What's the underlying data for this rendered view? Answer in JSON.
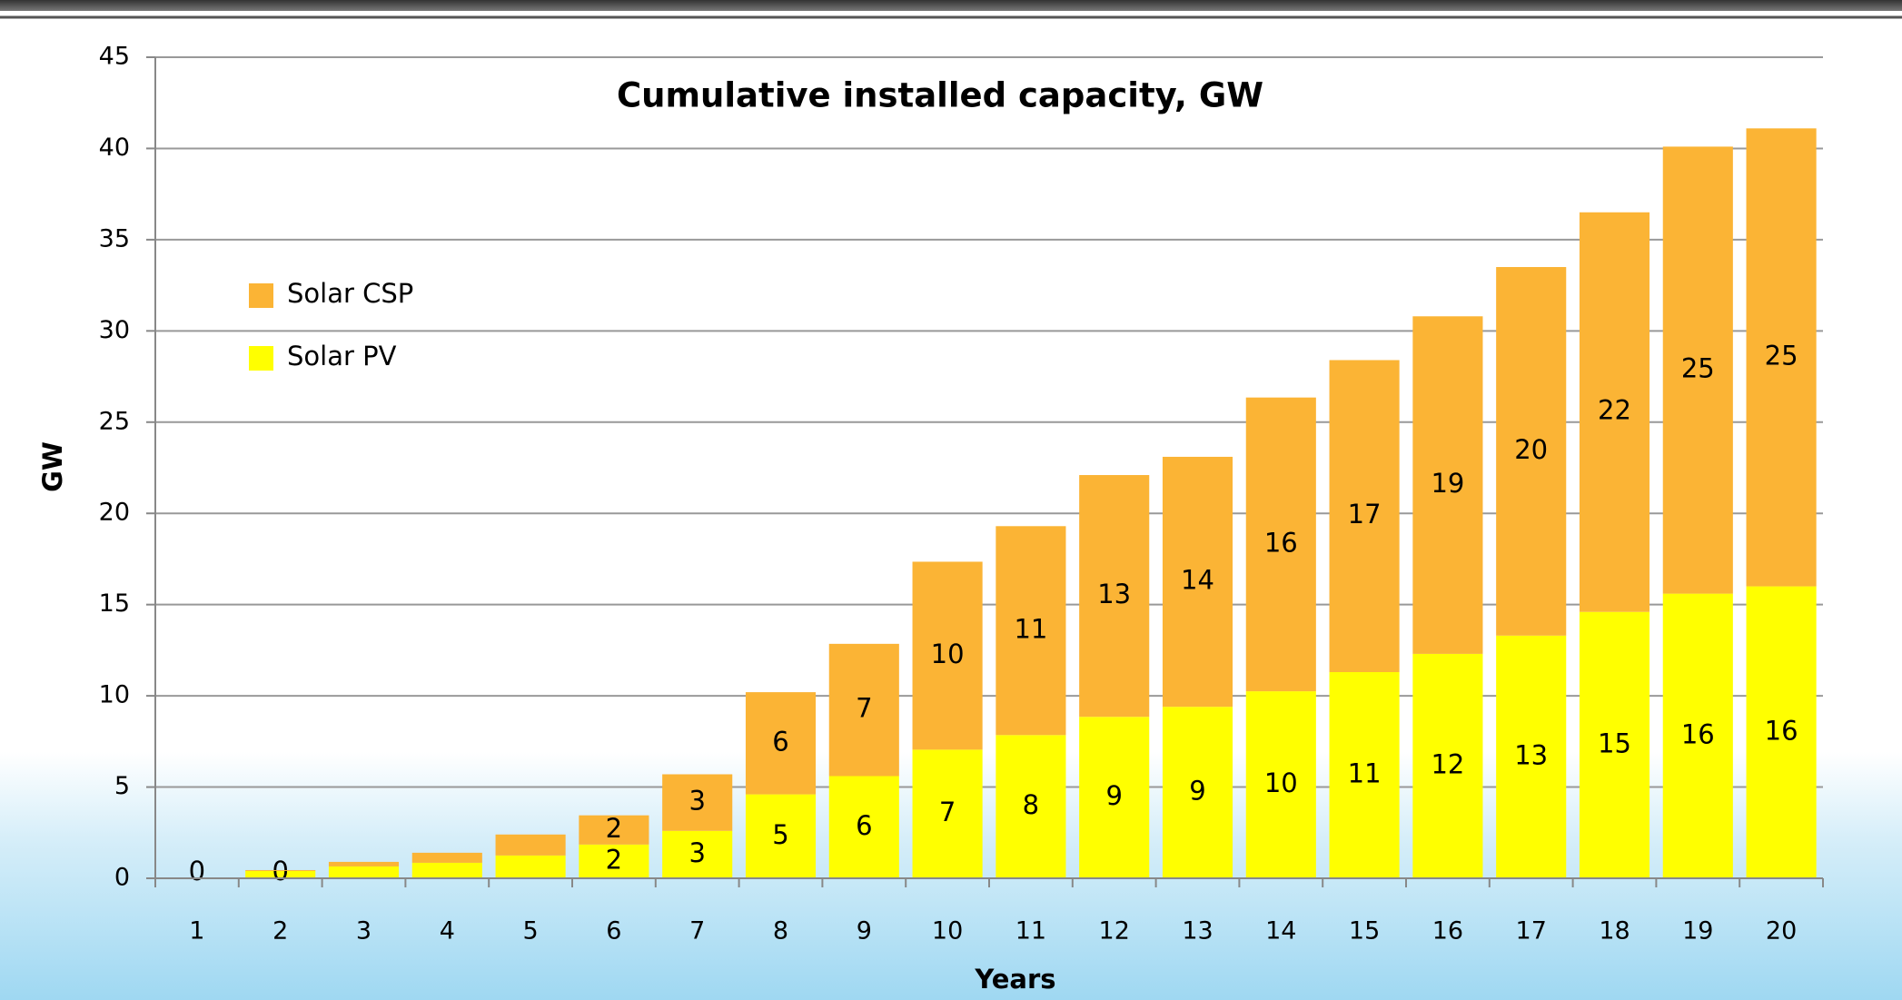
{
  "chart_data": {
    "type": "bar",
    "stacked": true,
    "title": "Cumulative installed capacity, GW",
    "x_label": "Years",
    "y_label": "GW",
    "categories": [
      "1",
      "2",
      "3",
      "4",
      "5",
      "6",
      "7",
      "8",
      "9",
      "10",
      "11",
      "12",
      "13",
      "14",
      "15",
      "16",
      "17",
      "18",
      "19",
      "20"
    ],
    "series": [
      {
        "name": "Solar PV",
        "color": "#ffff00",
        "values": [
          0,
          0.4,
          0.65,
          0.85,
          1.25,
          1.85,
          2.6,
          4.6,
          5.6,
          7.05,
          7.85,
          8.85,
          9.4,
          10.25,
          11.3,
          12.3,
          13.3,
          14.6,
          15.6,
          16.0
        ],
        "value_labels": [
          "0",
          "0",
          null,
          null,
          null,
          "2",
          "3",
          "5",
          "6",
          "7",
          "8",
          "9",
          "9",
          "10",
          "11",
          "12",
          "13",
          "15",
          "16",
          "16"
        ]
      },
      {
        "name": "Solar CSP",
        "color": "#fbb435",
        "values": [
          0,
          0.05,
          0.25,
          0.55,
          1.15,
          1.6,
          3.1,
          5.6,
          7.25,
          10.3,
          11.45,
          13.25,
          13.7,
          16.1,
          17.1,
          18.5,
          20.2,
          21.9,
          24.5,
          25.1
        ],
        "value_labels": [
          null,
          null,
          null,
          null,
          null,
          "2",
          "3",
          "6",
          "7",
          "10",
          "11",
          "13",
          "14",
          "16",
          "17",
          "19",
          "20",
          "22",
          "25",
          "25"
        ]
      }
    ],
    "ylim": [
      0,
      45
    ],
    "yticks": [
      0,
      5,
      10,
      15,
      20,
      25,
      30,
      35,
      40,
      45
    ],
    "grid": true,
    "legend": "upper left"
  }
}
